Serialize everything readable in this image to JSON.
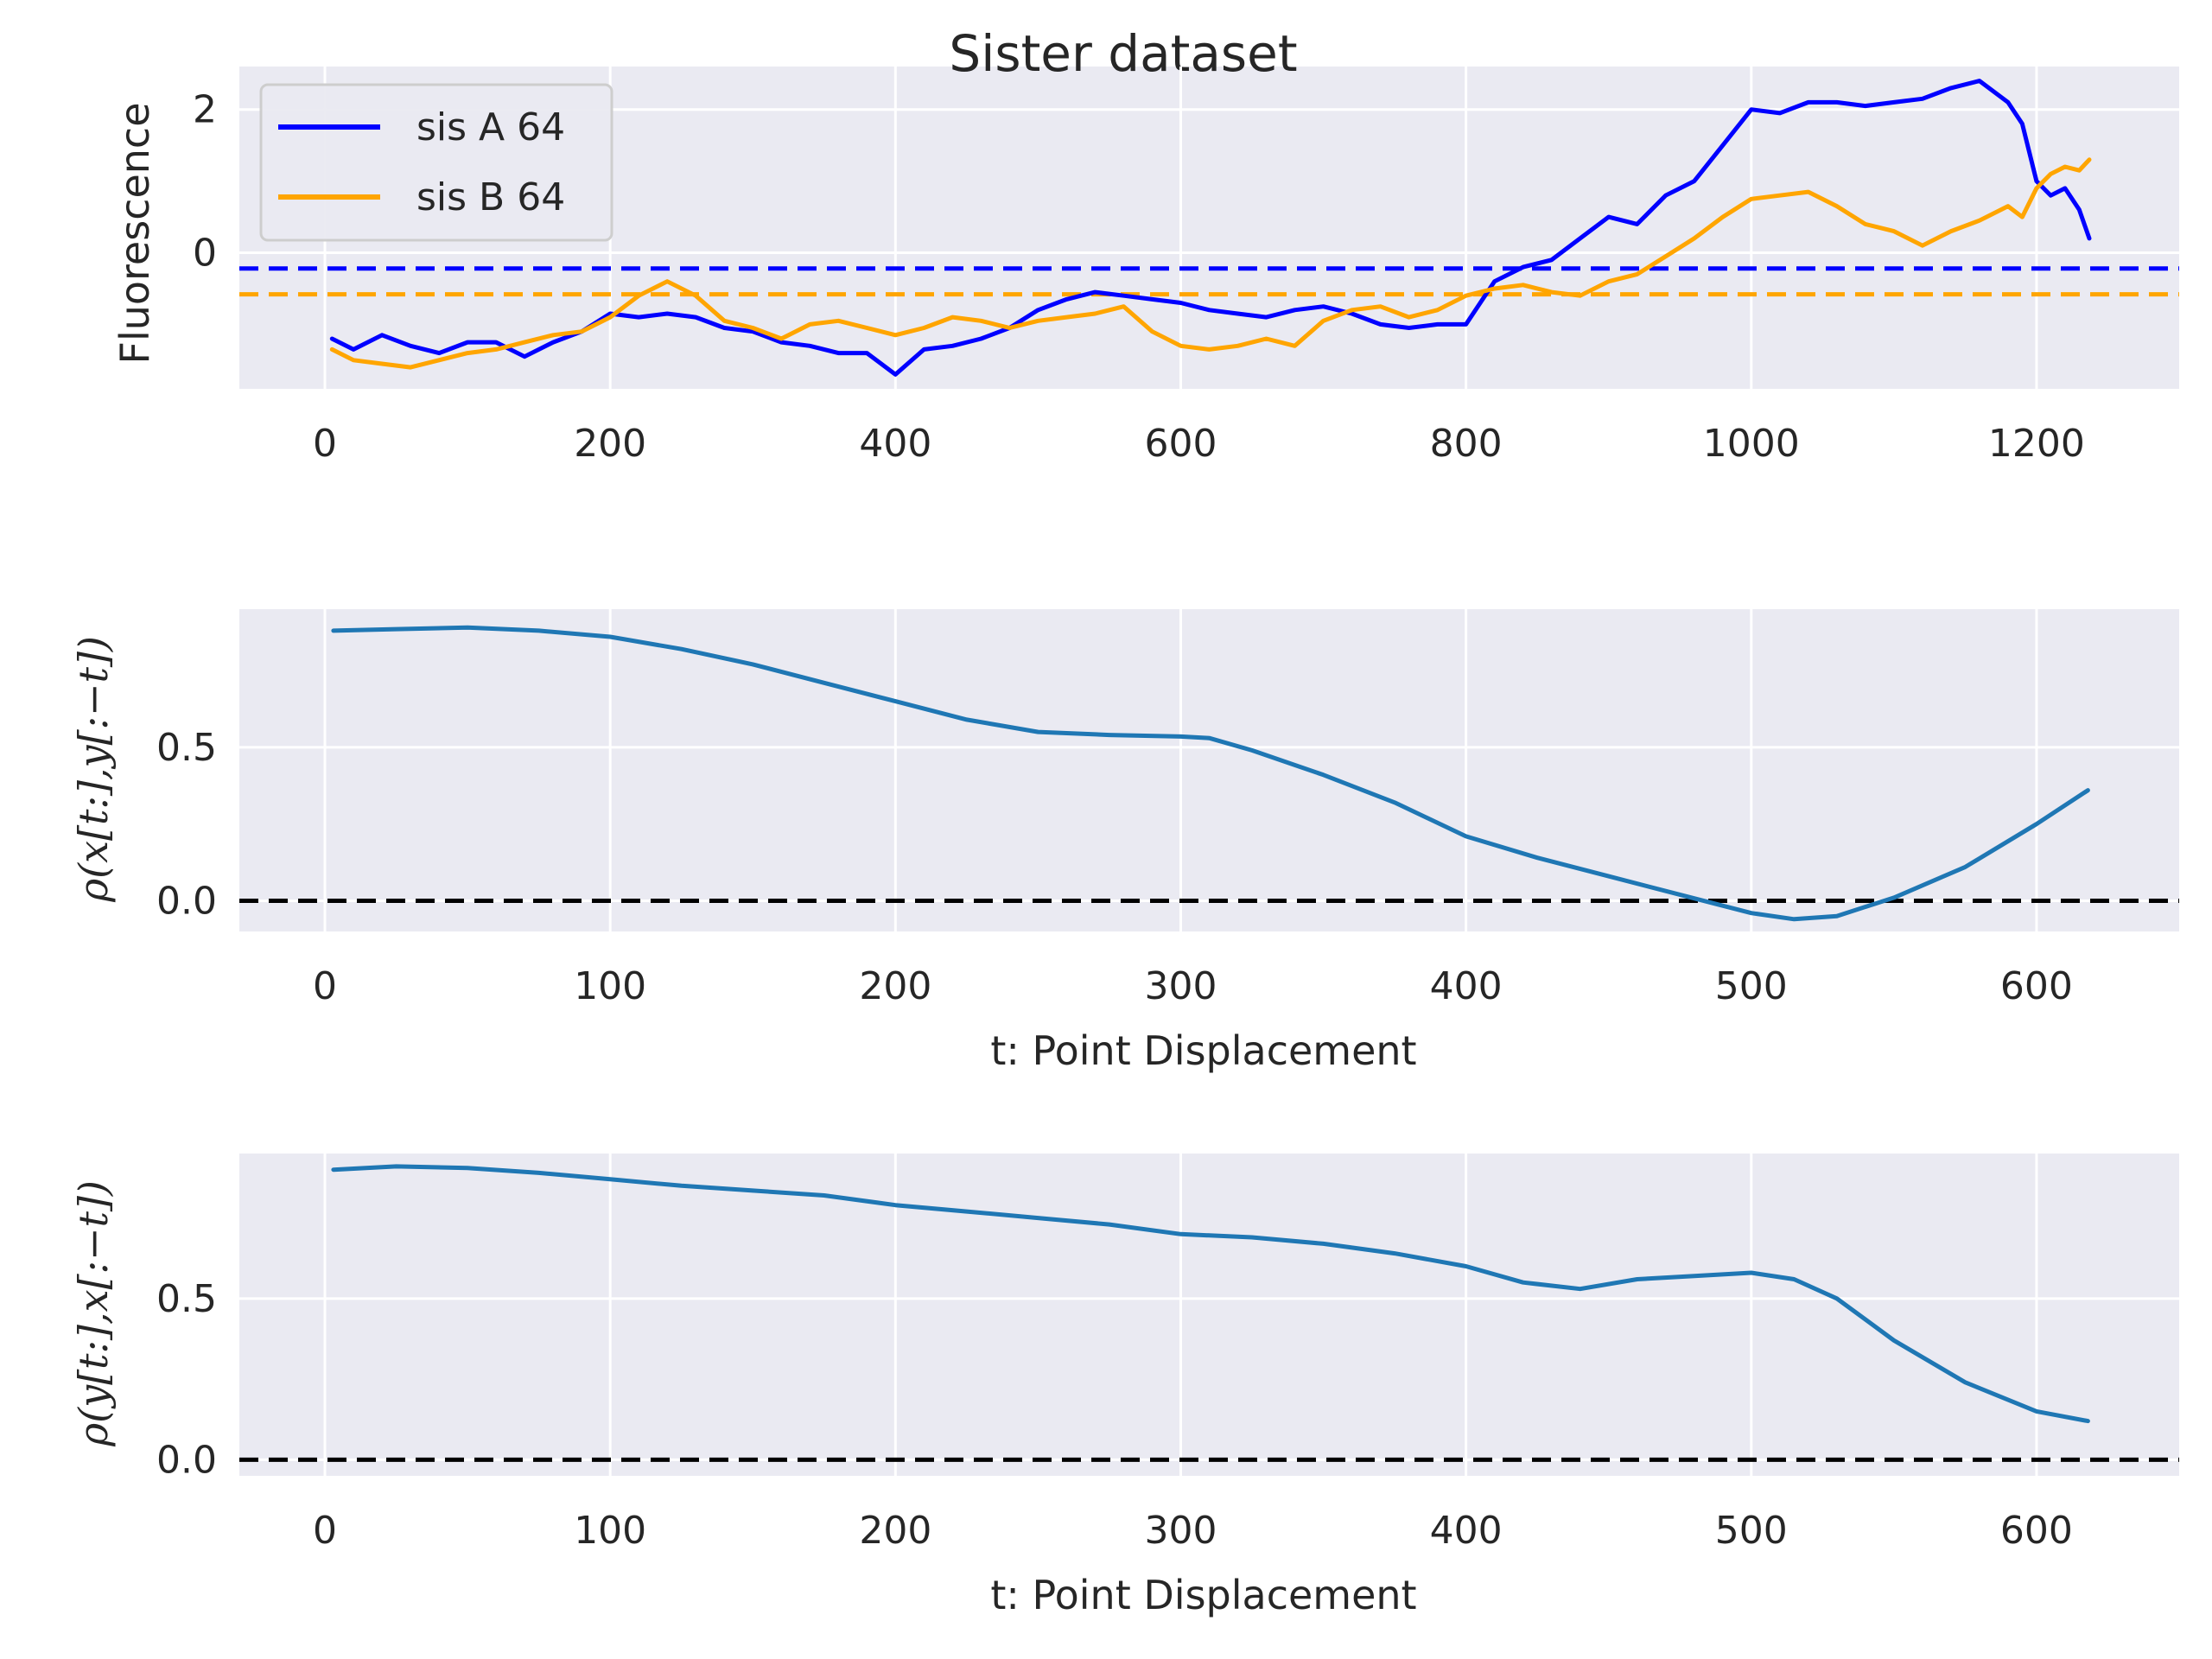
{
  "chart_data": [
    {
      "type": "line",
      "title": "Sister dataset",
      "xlabel": "",
      "ylabel": "Fluorescence",
      "xlim": [
        -60,
        1300
      ],
      "ylim": [
        -1.9,
        2.6
      ],
      "xticks": [
        0,
        200,
        400,
        600,
        800,
        1000,
        1200
      ],
      "xtick_labels": [
        "0",
        "200",
        "400",
        "600",
        "800",
        "1000",
        "1200"
      ],
      "yticks": [
        2,
        0
      ],
      "ytick_labels": [
        "2",
        "0"
      ],
      "grid": true,
      "legend_position": "top-left",
      "series": [
        {
          "name": "sis A 64",
          "color": "#0000ff",
          "x": [
            5,
            20,
            40,
            60,
            80,
            100,
            120,
            140,
            160,
            180,
            200,
            220,
            240,
            260,
            280,
            300,
            320,
            340,
            360,
            380,
            400,
            420,
            440,
            460,
            480,
            500,
            520,
            540,
            560,
            580,
            600,
            620,
            640,
            660,
            680,
            700,
            720,
            740,
            760,
            780,
            800,
            820,
            840,
            860,
            880,
            900,
            920,
            940,
            960,
            980,
            1000,
            1020,
            1040,
            1060,
            1080,
            1100,
            1120,
            1140,
            1160,
            1180,
            1190,
            1200,
            1210,
            1220,
            1230,
            1237
          ],
          "values": [
            -1.2,
            -1.35,
            -1.15,
            -1.3,
            -1.4,
            -1.25,
            -1.25,
            -1.45,
            -1.25,
            -1.1,
            -0.85,
            -0.9,
            -0.85,
            -0.9,
            -1.05,
            -1.1,
            -1.25,
            -1.3,
            -1.4,
            -1.4,
            -1.7,
            -1.35,
            -1.3,
            -1.2,
            -1.05,
            -0.8,
            -0.65,
            -0.55,
            -0.6,
            -0.65,
            -0.7,
            -0.8,
            -0.85,
            -0.9,
            -0.8,
            -0.75,
            -0.85,
            -1.0,
            -1.05,
            -1.0,
            -1.0,
            -0.4,
            -0.2,
            -0.1,
            0.2,
            0.5,
            0.4,
            0.8,
            1.0,
            1.5,
            2.0,
            1.95,
            2.1,
            2.1,
            2.05,
            2.1,
            2.15,
            2.3,
            2.4,
            2.1,
            1.8,
            1.0,
            0.8,
            0.9,
            0.6,
            0.2
          ]
        },
        {
          "name": "sis B 64",
          "color": "#ffa500",
          "x": [
            5,
            20,
            40,
            60,
            80,
            100,
            120,
            140,
            160,
            180,
            200,
            220,
            240,
            260,
            280,
            300,
            320,
            340,
            360,
            380,
            400,
            420,
            440,
            460,
            480,
            500,
            520,
            540,
            560,
            580,
            600,
            620,
            640,
            660,
            680,
            700,
            720,
            740,
            760,
            780,
            800,
            820,
            840,
            860,
            880,
            900,
            920,
            940,
            960,
            980,
            1000,
            1020,
            1040,
            1060,
            1080,
            1100,
            1120,
            1140,
            1160,
            1180,
            1190,
            1200,
            1210,
            1220,
            1230,
            1237
          ],
          "values": [
            -1.35,
            -1.5,
            -1.55,
            -1.6,
            -1.5,
            -1.4,
            -1.35,
            -1.25,
            -1.15,
            -1.1,
            -0.9,
            -0.6,
            -0.4,
            -0.6,
            -0.95,
            -1.05,
            -1.2,
            -1.0,
            -0.95,
            -1.05,
            -1.15,
            -1.05,
            -0.9,
            -0.95,
            -1.05,
            -0.95,
            -0.9,
            -0.85,
            -0.75,
            -1.1,
            -1.3,
            -1.35,
            -1.3,
            -1.2,
            -1.3,
            -0.95,
            -0.8,
            -0.75,
            -0.9,
            -0.8,
            -0.6,
            -0.5,
            -0.45,
            -0.55,
            -0.6,
            -0.4,
            -0.3,
            -0.05,
            0.2,
            0.5,
            0.75,
            0.8,
            0.85,
            0.65,
            0.4,
            0.3,
            0.1,
            0.3,
            0.45,
            0.65,
            0.5,
            0.9,
            1.1,
            1.2,
            1.15,
            1.3
          ]
        }
      ],
      "hlines": [
        {
          "y": -0.22,
          "color": "#0000ff",
          "style": "dashed"
        },
        {
          "y": -0.58,
          "color": "#ffa500",
          "style": "dashed"
        }
      ]
    },
    {
      "type": "line",
      "title": "",
      "xlabel": "t: Point Displacement",
      "ylabel": "ρ(x[t:],y[:−t])",
      "xlim": [
        -30,
        650
      ],
      "ylim": [
        -0.1,
        0.95
      ],
      "xticks": [
        0,
        100,
        200,
        300,
        400,
        500,
        600
      ],
      "xtick_labels": [
        "0",
        "100",
        "200",
        "300",
        "400",
        "500",
        "600"
      ],
      "yticks": [
        0.5,
        0.0
      ],
      "ytick_labels": [
        "0.5",
        "0.0"
      ],
      "grid": true,
      "series": [
        {
          "color": "#1f77b4",
          "x": [
            3,
            25,
            50,
            75,
            100,
            125,
            150,
            175,
            200,
            225,
            250,
            275,
            300,
            310,
            325,
            350,
            375,
            400,
            425,
            450,
            475,
            500,
            515,
            530,
            550,
            575,
            600,
            618
          ],
          "values": [
            0.88,
            0.885,
            0.89,
            0.88,
            0.86,
            0.82,
            0.77,
            0.71,
            0.65,
            0.59,
            0.55,
            0.54,
            0.535,
            0.53,
            0.49,
            0.41,
            0.32,
            0.21,
            0.14,
            0.08,
            0.02,
            -0.04,
            -0.06,
            -0.05,
            0.01,
            0.11,
            0.25,
            0.36
          ]
        }
      ],
      "hlines": [
        {
          "y": 0.0,
          "color": "#000000",
          "style": "dashed"
        }
      ]
    },
    {
      "type": "line",
      "title": "",
      "xlabel": "t: Point Displacement",
      "ylabel": "ρ(y[t:],x[:−t])",
      "xlim": [
        -30,
        650
      ],
      "ylim": [
        -0.05,
        0.95
      ],
      "xticks": [
        0,
        100,
        200,
        300,
        400,
        500,
        600
      ],
      "xtick_labels": [
        "0",
        "100",
        "200",
        "300",
        "400",
        "500",
        "600"
      ],
      "yticks": [
        0.5,
        0.0
      ],
      "ytick_labels": [
        "0.5",
        "0.0"
      ],
      "grid": true,
      "series": [
        {
          "color": "#1f77b4",
          "x": [
            3,
            25,
            50,
            75,
            100,
            125,
            150,
            175,
            200,
            225,
            250,
            275,
            300,
            325,
            350,
            375,
            400,
            420,
            440,
            460,
            480,
            500,
            515,
            530,
            550,
            575,
            600,
            618
          ],
          "values": [
            0.9,
            0.91,
            0.905,
            0.89,
            0.87,
            0.85,
            0.835,
            0.82,
            0.79,
            0.77,
            0.75,
            0.73,
            0.7,
            0.69,
            0.67,
            0.64,
            0.6,
            0.55,
            0.53,
            0.56,
            0.57,
            0.58,
            0.56,
            0.5,
            0.37,
            0.24,
            0.15,
            0.12
          ]
        }
      ],
      "hlines": [
        {
          "y": 0.0,
          "color": "#000000",
          "style": "dashed"
        }
      ]
    }
  ]
}
